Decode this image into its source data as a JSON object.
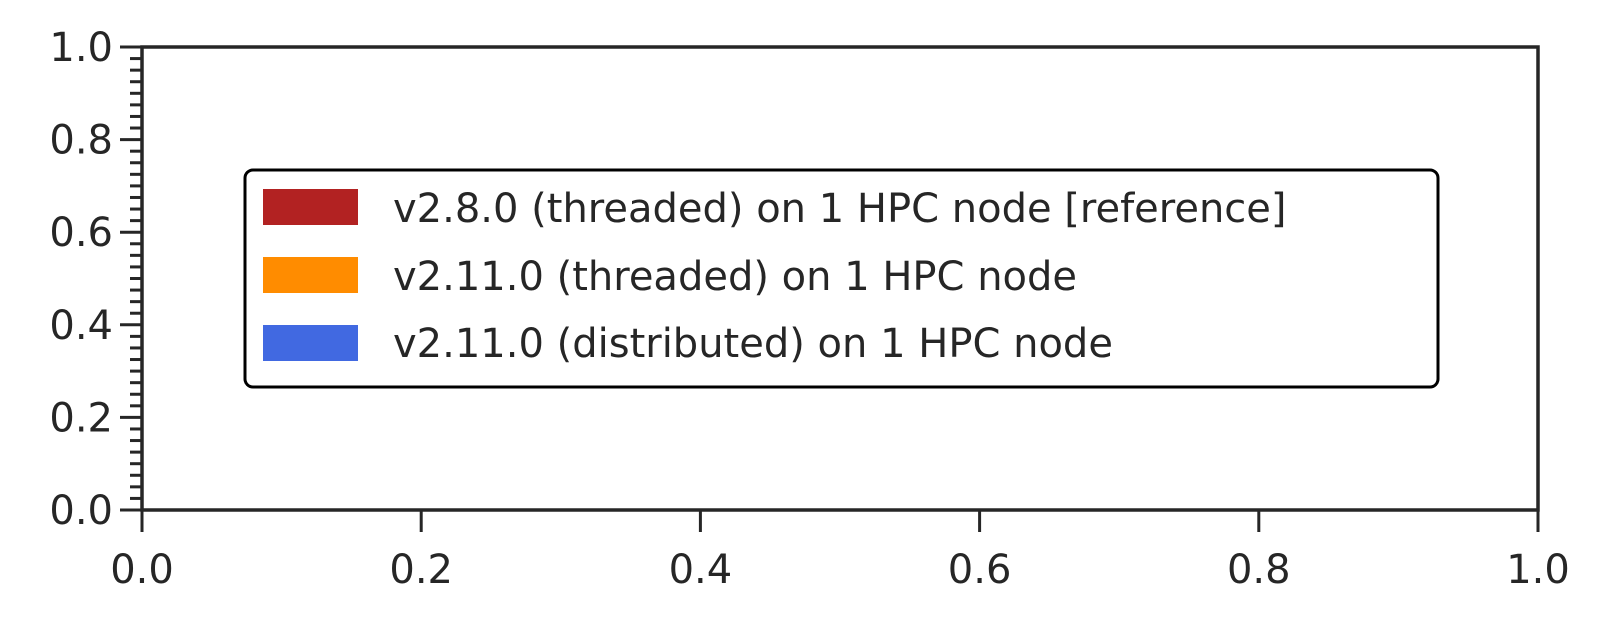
{
  "chart_data": {
    "type": "bar",
    "title": "",
    "xlabel": "",
    "ylabel": "",
    "xlim": [
      0.0,
      1.0
    ],
    "ylim": [
      0.0,
      1.0
    ],
    "x_ticks": [
      "0.0",
      "0.2",
      "0.4",
      "0.6",
      "0.8",
      "1.0"
    ],
    "y_ticks": [
      "0.0",
      "0.2",
      "0.4",
      "0.6",
      "0.8",
      "1.0"
    ],
    "grid": false,
    "legend_placement": "center",
    "series": [
      {
        "name": "v2.8.0 (threaded) on 1 HPC node [reference]",
        "color": "#b22222",
        "values": []
      },
      {
        "name": "v2.11.0 (threaded) on 1 HPC node",
        "color": "#ff8c00",
        "values": []
      },
      {
        "name": "v2.11.0 (distributed) on 1 HPC node",
        "color": "#4169e1",
        "values": []
      }
    ]
  }
}
